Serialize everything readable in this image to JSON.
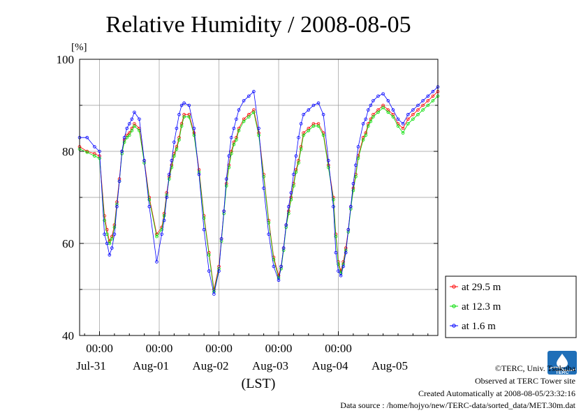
{
  "page": {
    "credits": {
      "copyright": "©TERC, Univ. Tsukuba",
      "observed": "Observed at TERC Tower site",
      "created": "Created Automatically at 2008-08-05/23:32:16",
      "source": "Data source : /home/hojyo/new/TERC-data/sorted_data/MET.30m.dat"
    },
    "logo_text": "TERC"
  },
  "chart_data": {
    "type": "line",
    "title": "Relative Humidity / 2008-08-05",
    "ylabel": "[%]",
    "xlabel": "(LST)",
    "ylim": [
      40,
      100
    ],
    "y_ticks": [
      40,
      60,
      80,
      100
    ],
    "x_unit": "hours since 2008-07-30 16:00 (LST)",
    "xlim": [
      0,
      144
    ],
    "x_time_ticks": [
      {
        "x": 8,
        "label": "00:00"
      },
      {
        "x": 32,
        "label": "00:00"
      },
      {
        "x": 56,
        "label": "00:00"
      },
      {
        "x": 80,
        "label": "00:00"
      },
      {
        "x": 104,
        "label": "00:00"
      }
    ],
    "x_date_labels": [
      {
        "x": 8,
        "label": "Jul-31"
      },
      {
        "x": 32,
        "label": "Aug-01"
      },
      {
        "x": 56,
        "label": "Aug-02"
      },
      {
        "x": 80,
        "label": "Aug-03"
      },
      {
        "x": 104,
        "label": "Aug-04"
      },
      {
        "x": 128,
        "label": "Aug-05"
      }
    ],
    "grid": true,
    "legend_position": "right-bottom",
    "x": [
      0,
      3,
      6,
      8,
      10,
      11,
      12,
      13,
      14,
      15,
      16,
      17,
      18,
      19,
      20,
      21,
      22,
      24,
      26,
      28,
      31,
      33,
      34,
      35,
      36,
      37,
      38,
      39,
      40,
      41,
      42,
      44,
      46,
      48,
      50,
      52,
      54,
      56,
      57,
      58,
      59,
      60,
      61,
      62,
      63,
      64,
      66,
      68,
      70,
      72,
      74,
      76,
      78,
      80,
      81,
      82,
      83,
      84,
      85,
      86,
      87,
      88,
      89,
      90,
      92,
      94,
      96,
      98,
      100,
      102,
      103,
      104,
      105,
      106,
      107,
      108,
      109,
      110,
      111,
      112,
      114,
      115,
      116,
      117,
      118,
      120,
      122,
      124,
      126,
      128,
      130,
      132,
      134,
      136,
      138,
      140,
      142,
      144
    ],
    "series": [
      {
        "name": "at 29.5 m",
        "color": "#ff0000",
        "values": [
          81,
          80,
          79.5,
          79,
          66,
          63,
          60.5,
          61.5,
          64,
          69,
          74,
          80,
          82.5,
          83.5,
          84,
          85,
          86,
          85,
          78,
          70,
          62,
          63.5,
          66.5,
          71,
          74.5,
          77,
          79.5,
          81,
          83,
          86,
          88,
          88,
          84,
          76,
          66,
          58,
          50,
          55,
          61,
          67,
          73,
          77,
          80,
          82,
          83,
          85,
          87,
          88,
          89,
          84,
          75,
          65,
          57,
          53,
          55,
          59,
          64,
          67,
          70,
          73,
          76,
          78,
          81,
          84,
          85,
          86,
          86,
          84,
          77,
          70,
          62,
          56,
          54,
          56,
          59,
          63,
          68,
          72,
          75,
          79,
          83,
          84,
          86,
          87,
          88,
          89,
          90,
          89,
          88,
          86,
          85,
          87,
          88,
          89,
          90,
          91,
          92,
          93
        ]
      },
      {
        "name": "at 12.3 m",
        "color": "#00dd00",
        "values": [
          80.5,
          79.8,
          79,
          78.5,
          65,
          62,
          60,
          61,
          63.5,
          68.5,
          73.5,
          79.5,
          82,
          83,
          83.5,
          84.5,
          85.5,
          84.5,
          77.5,
          69.5,
          61.5,
          63,
          66,
          70.5,
          74,
          76.5,
          79,
          80.5,
          82.5,
          85.5,
          87.5,
          87.5,
          83.5,
          75.5,
          65.5,
          57.5,
          49.5,
          54.5,
          60.5,
          66.5,
          72.5,
          76.5,
          79.5,
          81.5,
          82.5,
          84.5,
          86.5,
          87.5,
          88.5,
          83.5,
          74.5,
          64.5,
          56.5,
          52.5,
          54.5,
          58.5,
          63.5,
          66.5,
          69.5,
          72.5,
          75.5,
          77.5,
          80.5,
          83.5,
          84.5,
          85.5,
          85.5,
          83.5,
          76.5,
          69.5,
          61.5,
          55.5,
          53.5,
          55.5,
          58.5,
          62.5,
          67.5,
          71.5,
          74.5,
          78.5,
          82.5,
          83.5,
          85.5,
          86.5,
          87.5,
          88.5,
          89.5,
          88.5,
          87.5,
          85.5,
          84,
          86,
          87,
          88,
          89,
          90,
          91,
          92
        ]
      },
      {
        "name": "at 1.6 m",
        "color": "#0000ff",
        "values": [
          83,
          83,
          81,
          80,
          62,
          60,
          57.5,
          59,
          62,
          68,
          73.5,
          80,
          83,
          85,
          86,
          87,
          88.5,
          87,
          78,
          68,
          56,
          62,
          65,
          70,
          75,
          78,
          82,
          85,
          88,
          90,
          90.5,
          90,
          85,
          75,
          63,
          54,
          49,
          54,
          61,
          67,
          74,
          79,
          83,
          85,
          87,
          89,
          91,
          92,
          93,
          85,
          72,
          62,
          55,
          52,
          55,
          59,
          64,
          68,
          71,
          75,
          79,
          83,
          86,
          88,
          89,
          90,
          90.5,
          88,
          78,
          68,
          58,
          54,
          53,
          55,
          58,
          63,
          68,
          73,
          77,
          81,
          86,
          87,
          89,
          90,
          91,
          92,
          92.5,
          91,
          89,
          87,
          86,
          88,
          89,
          90,
          91,
          92,
          93,
          94
        ]
      }
    ]
  }
}
